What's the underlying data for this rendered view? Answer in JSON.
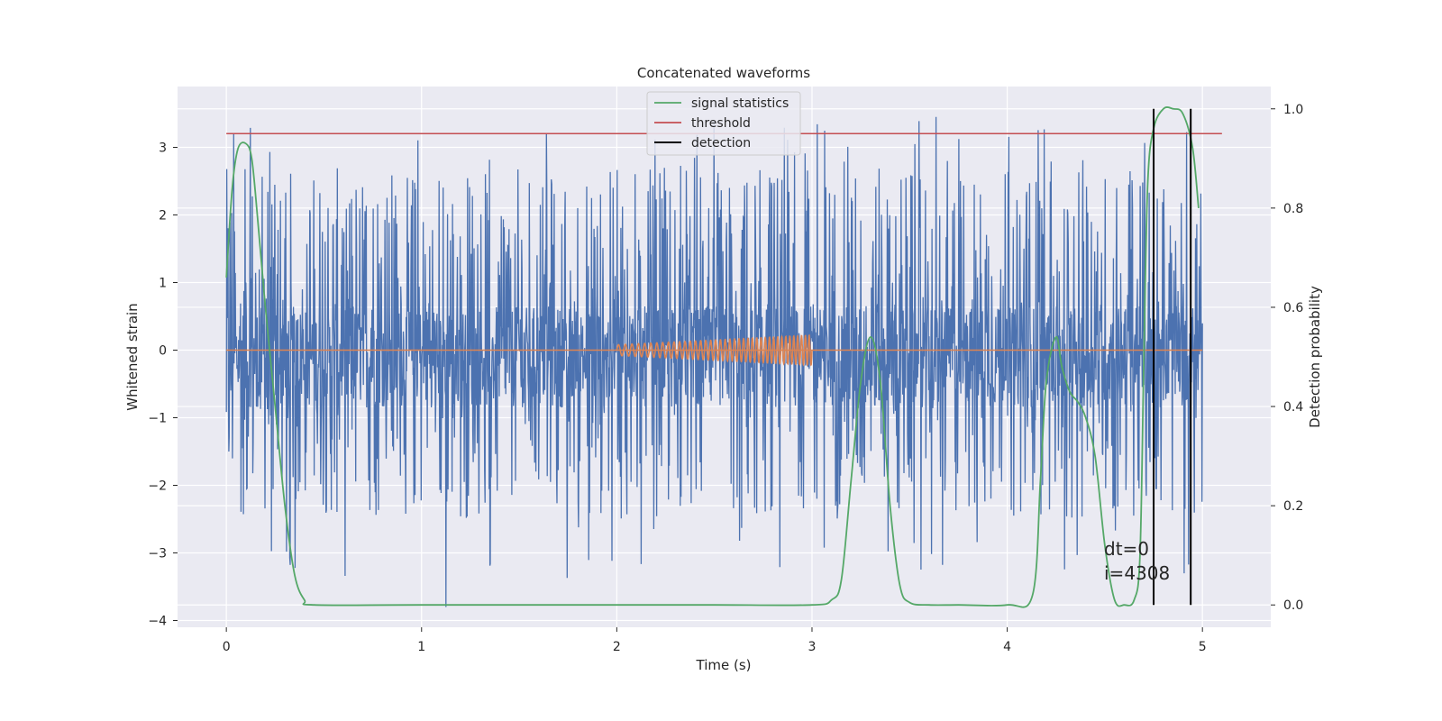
{
  "chart_data": {
    "type": "line",
    "title": "Concatenated waveforms",
    "xlabel": "Time (s)",
    "ylabel": "Whitened strain",
    "y2label": "Detection probability",
    "xlim": [
      -0.25,
      5.35
    ],
    "ylim": [
      -4.1,
      3.9
    ],
    "y2lim": [
      -0.045,
      1.045
    ],
    "xticks": [
      0,
      1,
      2,
      3,
      4,
      5
    ],
    "yticks": [
      -4,
      -3,
      -2,
      -1,
      0,
      1,
      2,
      3
    ],
    "y2ticks": [
      0.0,
      0.2,
      0.4,
      0.6,
      0.8,
      1.0
    ],
    "grid": true,
    "legend_position": "top-center",
    "legend": [
      "signal statistics",
      "threshold",
      "detection"
    ],
    "colors": {
      "strain": "#4c72b0",
      "injection": "#dd8452",
      "signal_statistics": "#55a868",
      "threshold": "#c44e52",
      "detection": "#000000",
      "plot_background": "#eaeaf2",
      "grid": "#ffffff"
    },
    "strain": {
      "x_range": [
        0,
        5
      ],
      "baseline_band": [
        -0.85,
        0.65
      ],
      "typical_peak_range": [
        -2.5,
        2.7
      ],
      "max_spike": 3.45,
      "min_spike": -3.8
    },
    "injection": {
      "x_range": [
        2.0,
        3.0
      ],
      "amplitude_start": 0.08,
      "amplitude_end": 0.22,
      "cycles": 40
    },
    "signal_statistics": {
      "x": [
        0,
        0.03,
        0.06,
        0.1,
        0.13,
        0.16,
        0.2,
        0.25,
        0.3,
        0.35,
        0.4,
        0.45,
        1.0,
        2.0,
        2.5,
        3.0,
        3.1,
        3.15,
        3.2,
        3.25,
        3.3,
        3.35,
        3.4,
        3.45,
        3.5,
        3.6,
        3.75,
        4.0,
        4.13,
        4.17,
        4.2,
        4.25,
        4.28,
        4.32,
        4.36,
        4.4,
        4.45,
        4.5,
        4.55,
        4.6,
        4.65,
        4.68,
        4.7,
        4.72,
        4.75,
        4.8,
        4.85,
        4.9,
        4.95,
        4.98
      ],
      "y": [
        0.66,
        0.84,
        0.92,
        0.93,
        0.9,
        0.78,
        0.6,
        0.4,
        0.2,
        0.06,
        0.01,
        0.0,
        0.0,
        0.0,
        0.0,
        0.0,
        0.01,
        0.05,
        0.25,
        0.45,
        0.54,
        0.45,
        0.2,
        0.04,
        0.005,
        0.0,
        0.0,
        0.0,
        0.02,
        0.25,
        0.45,
        0.54,
        0.48,
        0.43,
        0.41,
        0.38,
        0.3,
        0.12,
        0.01,
        0.0,
        0.01,
        0.1,
        0.5,
        0.85,
        0.96,
        1.0,
        1.0,
        0.99,
        0.92,
        0.8
      ]
    },
    "threshold": {
      "value": 0.95,
      "x_range": [
        0,
        5.1
      ]
    },
    "detections": [
      4.75,
      4.94
    ],
    "annotation": [
      "dt=0",
      "i=4308"
    ]
  }
}
